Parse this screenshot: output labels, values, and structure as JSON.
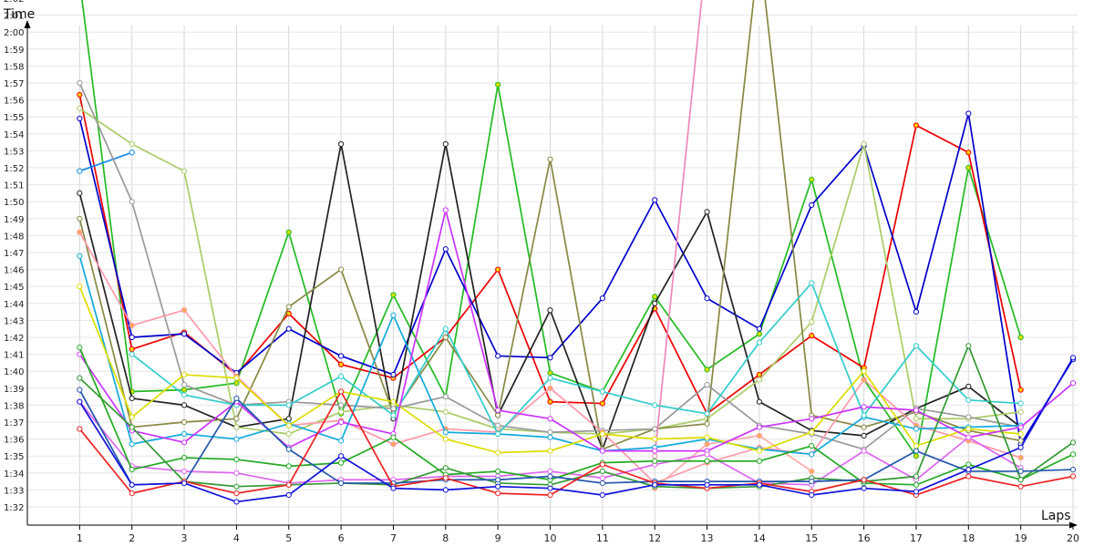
{
  "chart_data": {
    "type": "line",
    "xlabel": "Laps",
    "ylabel": "Time",
    "x": [
      1,
      2,
      3,
      4,
      5,
      6,
      7,
      8,
      9,
      10,
      11,
      12,
      13,
      14,
      15,
      16,
      17,
      18,
      19,
      20
    ],
    "x_tick_labels": [
      "1",
      "2",
      "3",
      "4",
      "5",
      "6",
      "7",
      "8",
      "9",
      "10",
      "11",
      "12",
      "13",
      "14",
      "15",
      "16",
      "17",
      "18",
      "19",
      "20"
    ],
    "xlim": [
      0,
      20
    ],
    "ylim": [
      91,
      124.5
    ],
    "y_unit": "seconds",
    "y_ticks": [
      92,
      93,
      94,
      95,
      96,
      97,
      98,
      99,
      100,
      101,
      102,
      103,
      104,
      105,
      106,
      107,
      108,
      109,
      110,
      111,
      112,
      113,
      114,
      115,
      116,
      117,
      118,
      119,
      120,
      121,
      122
    ],
    "y_tick_labels": [
      "1:32",
      "1:33",
      "1:34",
      "1:35",
      "1:36",
      "1:37",
      "1:38",
      "1:39",
      "1:40",
      "1:41",
      "1:42",
      "1:43",
      "1:44",
      "1:45",
      "1:46",
      "1:47",
      "1:48",
      "1:49",
      "1:50",
      "1:51",
      "1:52",
      "1:53",
      "1:54",
      "1:55",
      "1:56",
      "1:57",
      "1:58",
      "1:59",
      "2:00",
      "2:01",
      "2:02"
    ],
    "grid": true,
    "series": [
      {
        "color": "#22bb22",
        "marker_fill": "#dddd00",
        "values": [
          123,
          98.8,
          98.9,
          99.3,
          108.2,
          97.5,
          104.5,
          98.5,
          116.9,
          99.9,
          98.8,
          104.4,
          100.1,
          102.2,
          111.3,
          99.5,
          95,
          112,
          102,
          null
        ]
      },
      {
        "color": "#ee0000",
        "marker_fill": "#ffcc00",
        "values": [
          116.3,
          101.3,
          102.3,
          99.8,
          103.4,
          100.4,
          99.6,
          102,
          106,
          98.2,
          98.1,
          103.7,
          97.5,
          99.8,
          102.1,
          100.2,
          114.5,
          112.9,
          98.9,
          null
        ]
      },
      {
        "color": "#0000cc",
        "marker_fill": "#ffffff",
        "values": [
          114.9,
          102,
          102.2,
          99.9,
          102.5,
          100.9,
          99.8,
          107.2,
          100.9,
          100.8,
          104.3,
          110.1,
          104.3,
          102.5,
          109.8,
          113.3,
          103.5,
          115.2,
          95.7,
          100.7
        ]
      },
      {
        "color": "#1188ee",
        "marker_fill": "#ffffff",
        "values": [
          111.8,
          112.9,
          null,
          null,
          null,
          null,
          null,
          null,
          null,
          null,
          null,
          null,
          null,
          null,
          null,
          null,
          null,
          null,
          null,
          null
        ]
      },
      {
        "color": "#222222",
        "marker_fill": "#ffffff",
        "values": [
          110.5,
          98.4,
          98,
          96.7,
          97.2,
          113.4,
          97.2,
          113.4,
          97.4,
          103.6,
          95.4,
          104,
          109.4,
          98.2,
          96.5,
          96.2,
          97.8,
          99.1,
          96.7,
          null
        ]
      },
      {
        "color": "#aacc66",
        "marker_fill": "#ffffff",
        "values": [
          115.5,
          113.4,
          111.8,
          96.7,
          96.3,
          97.6,
          98,
          97.6,
          96.6,
          96.4,
          96.3,
          96.6,
          97.2,
          99.5,
          102.9,
          113.4,
          97.2,
          97.2,
          97.6,
          null
        ]
      },
      {
        "color": "#888844",
        "marker_fill": "#ffffff",
        "values": [
          109,
          96.7,
          97,
          97.2,
          103.8,
          106,
          97.5,
          102,
          97.4,
          112.5,
          95.4,
          96.6,
          96.9,
          125,
          97.4,
          96.7,
          97.6,
          96.5,
          95.9,
          null
        ]
      },
      {
        "color": "#999999",
        "marker_fill": "#ffffff",
        "values": [
          117,
          110,
          99.2,
          98,
          98.2,
          98,
          97.8,
          98.5,
          96.8,
          96.4,
          96.5,
          96.6,
          99.2,
          96.8,
          96.3,
          95.4,
          97.8,
          97.3,
          96.7,
          null
        ]
      },
      {
        "color": "#ff99aa",
        "marker_fill": "#ffaa55",
        "values": [
          108.2,
          102.7,
          103.6,
          99.7,
          96.8,
          97.1,
          95.7,
          96.6,
          96.4,
          99,
          96.4,
          93.4,
          94.6,
          95.5,
          95.1,
          99.5,
          96.8,
          95.9,
          94.9,
          null
        ]
      },
      {
        "color": "#ffaaaa",
        "marker_fill": "#ffaa55",
        "values": [
          null,
          null,
          null,
          null,
          null,
          null,
          null,
          null,
          null,
          null,
          null,
          93.1,
          95.7,
          96.2,
          94.1,
          null,
          null,
          null,
          null,
          null
        ]
      },
      {
        "color": "#ee88bb",
        "marker_fill": "#ffffff",
        "values": [
          null,
          null,
          null,
          null,
          null,
          null,
          null,
          null,
          null,
          null,
          null,
          95,
          125,
          null,
          null,
          null,
          null,
          null,
          null,
          null
        ]
      },
      {
        "color": "#11aadd",
        "marker_fill": "#ffffff",
        "values": [
          106.8,
          95.7,
          96.3,
          96,
          96.9,
          95.9,
          103.3,
          96.4,
          96.3,
          96.1,
          95.3,
          95.5,
          96,
          95.4,
          95.1,
          97.3,
          96.6,
          96.7,
          96.8,
          null
        ]
      },
      {
        "color": "#33cccc",
        "marker_fill": "#ffffff",
        "values": [
          null,
          101,
          98.6,
          98,
          98,
          99.7,
          97.4,
          102.5,
          96.3,
          99.6,
          98.8,
          98,
          97.5,
          101.7,
          105.2,
          97.4,
          101.5,
          98.3,
          98.1,
          null
        ]
      },
      {
        "color": "#dddd00",
        "marker_fill": "#ffffff",
        "values": [
          105,
          97.3,
          99.8,
          99.6,
          96.8,
          98.8,
          98.2,
          96,
          95.2,
          95.3,
          96.3,
          96,
          96.1,
          95.3,
          96.4,
          100,
          95.6,
          96.6,
          96.3,
          null
        ]
      },
      {
        "color": "#cc33ff",
        "marker_fill": "#ffffff",
        "values": [
          101,
          96.5,
          95.8,
          98.2,
          95.5,
          97,
          96.3,
          109.5,
          97.7,
          97.2,
          95.3,
          95.3,
          95.3,
          96.7,
          97.2,
          97.9,
          97.7,
          96.1,
          96.7,
          99.3
        ]
      },
      {
        "color": "#dd66ee",
        "marker_fill": "#ffffff",
        "values": [
          98.2,
          94.4,
          94.1,
          94,
          93.4,
          93.6,
          93.6,
          93.8,
          93.8,
          94.1,
          93.7,
          94.5,
          95.1,
          93.4,
          93.3,
          95.3,
          93.6,
          96.1,
          94.3,
          null
        ]
      },
      {
        "color": "#22aa22",
        "marker_fill": "#ffffff",
        "values": [
          101.4,
          94.2,
          94.9,
          94.8,
          94.4,
          94.6,
          96.1,
          93.9,
          94.1,
          93.6,
          94.6,
          94.7,
          94.7,
          94.7,
          95.6,
          93.4,
          93.3,
          94.5,
          93.6,
          95.1
        ]
      },
      {
        "color": "#339933",
        "marker_fill": "#ffffff",
        "values": [
          99.6,
          96.7,
          93.5,
          93.2,
          93.3,
          93.4,
          93.3,
          94.3,
          93.4,
          93.3,
          94.1,
          93.2,
          93.1,
          93.2,
          93.7,
          93.5,
          93.8,
          101.5,
          93.6,
          95.8
        ]
      },
      {
        "color": "#2255aa",
        "marker_fill": "#ffffff",
        "values": [
          98.9,
          93.3,
          93.4,
          98.4,
          95.4,
          93.4,
          93.4,
          93.6,
          93.6,
          93.8,
          93.4,
          93.5,
          93.5,
          93.5,
          93.5,
          93.6,
          95.3,
          94.1,
          94.1,
          94.2
        ]
      },
      {
        "color": "#ee2222",
        "marker_fill": "#ffffff",
        "values": [
          96.6,
          92.8,
          93.5,
          92.8,
          93.3,
          98.8,
          93.2,
          93.7,
          92.8,
          92.7,
          94.5,
          93.4,
          93.1,
          93.4,
          92.9,
          93.6,
          92.7,
          93.8,
          93.2,
          93.8
        ]
      },
      {
        "color": "#1111dd",
        "marker_fill": "#ffffff",
        "values": [
          98.2,
          93.3,
          93.4,
          92.3,
          92.7,
          95,
          93.1,
          93,
          93.2,
          93.1,
          92.7,
          93.3,
          93.3,
          93.3,
          92.7,
          93.1,
          92.9,
          94.2,
          95.5,
          100.8
        ]
      }
    ]
  }
}
